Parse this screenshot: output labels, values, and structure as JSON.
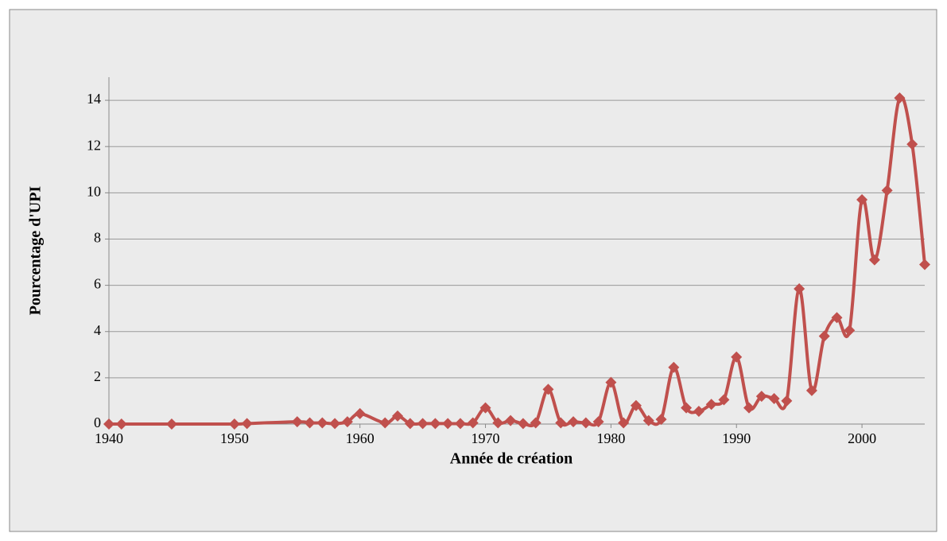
{
  "chart_data": {
    "type": "line",
    "xlabel": "Année de création",
    "ylabel": "Pourcentage d'UPI",
    "x": [
      1940,
      1941,
      1945,
      1950,
      1951,
      1955,
      1956,
      1957,
      1958,
      1959,
      1960,
      1962,
      1963,
      1964,
      1965,
      1966,
      1967,
      1968,
      1969,
      1970,
      1971,
      1972,
      1973,
      1974,
      1975,
      1976,
      1977,
      1978,
      1979,
      1980,
      1981,
      1982,
      1983,
      1984,
      1985,
      1986,
      1987,
      1988,
      1989,
      1990,
      1991,
      1992,
      1993,
      1994,
      1995,
      1996,
      1997,
      1998,
      1999,
      2000,
      2001,
      2002,
      2003,
      2004,
      2005
    ],
    "series": [
      {
        "name": "Pourcentage d'UPI",
        "color": "#c0504d",
        "values": [
          0,
          0,
          0,
          0,
          0.02,
          0.1,
          0.05,
          0.05,
          0.02,
          0.1,
          0.45,
          0.05,
          0.35,
          0.02,
          0.02,
          0.02,
          0.02,
          0.02,
          0.05,
          0.7,
          0.05,
          0.15,
          0.02,
          0.05,
          1.5,
          0.05,
          0.1,
          0.05,
          0.1,
          1.8,
          0.05,
          0.8,
          0.15,
          0.2,
          2.45,
          0.7,
          0.55,
          0.85,
          1.05,
          2.9,
          0.7,
          1.2,
          1.1,
          1.0,
          5.85,
          1.45,
          3.8,
          4.6,
          4.05,
          9.7,
          7.1,
          10.1,
          14.1,
          12.1,
          6.9
        ]
      }
    ],
    "xlim": [
      1940,
      2005
    ],
    "xticks": [
      1940,
      1950,
      1960,
      1970,
      1980,
      1990,
      2000
    ],
    "ylim": [
      0,
      15
    ],
    "yticks": [
      0,
      2,
      4,
      6,
      8,
      10,
      12,
      14
    ],
    "grid": true
  }
}
